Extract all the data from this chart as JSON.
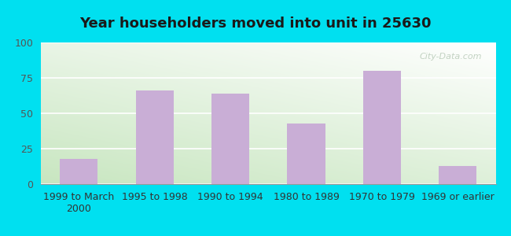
{
  "title": "Year householders moved into unit in 25630",
  "categories": [
    "1999 to March\n2000",
    "1995 to 1998",
    "1990 to 1994",
    "1980 to 1989",
    "1970 to 1979",
    "1969 or earlier"
  ],
  "values": [
    18,
    66,
    64,
    43,
    80,
    13
  ],
  "bar_color": "#c9aed6",
  "ylim": [
    0,
    100
  ],
  "yticks": [
    0,
    25,
    50,
    75,
    100
  ],
  "outer_bg": "#00e0f0",
  "title_fontsize": 13,
  "tick_fontsize": 9,
  "watermark": "City-Data.com",
  "grad_bottom_left": "#c8e6c0",
  "grad_top_right": "#ffffff"
}
